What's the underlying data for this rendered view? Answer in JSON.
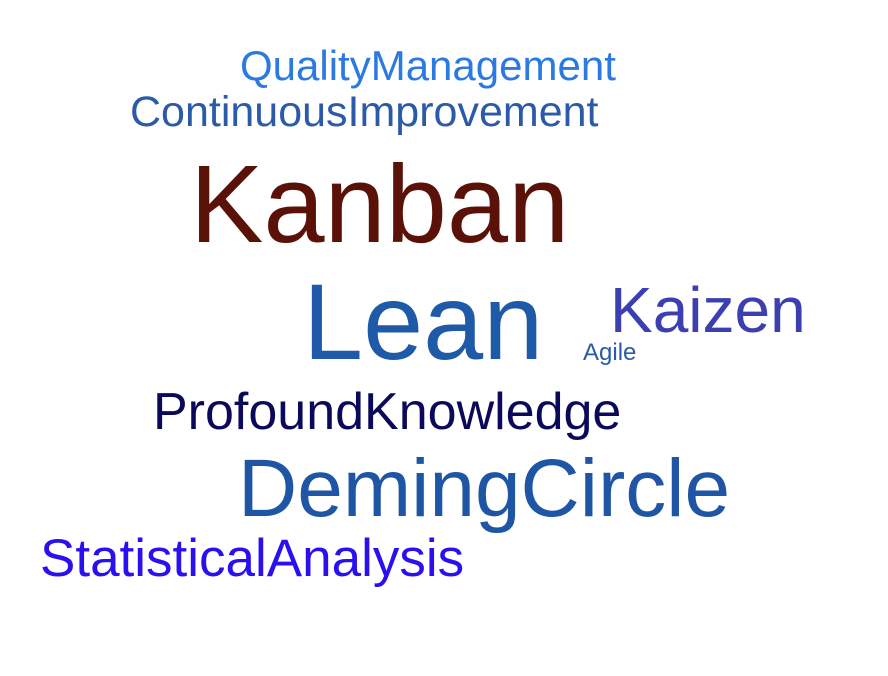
{
  "word_cloud": {
    "words": [
      {
        "id": "quality",
        "text": "QualityManagement",
        "color": "#2a7ae2"
      },
      {
        "id": "continuous",
        "text": "ContinuousImprovement",
        "color": "#2a5aa8"
      },
      {
        "id": "kanban",
        "text": "Kanban",
        "color": "#5a1208"
      },
      {
        "id": "lean",
        "text": "Lean",
        "color": "#1f5aa8"
      },
      {
        "id": "kaizen",
        "text": "Kaizen",
        "color": "#3b3fb0"
      },
      {
        "id": "agile",
        "text": "Agile",
        "color": "#2a5aa8"
      },
      {
        "id": "profound",
        "text": "ProfoundKnowledge",
        "color": "#0b0a5a"
      },
      {
        "id": "deming",
        "text": "DemingCircle",
        "color": "#1f55a5"
      },
      {
        "id": "statistical",
        "text": "StatisticalAnalysis",
        "color": "#2a10f0"
      }
    ]
  }
}
